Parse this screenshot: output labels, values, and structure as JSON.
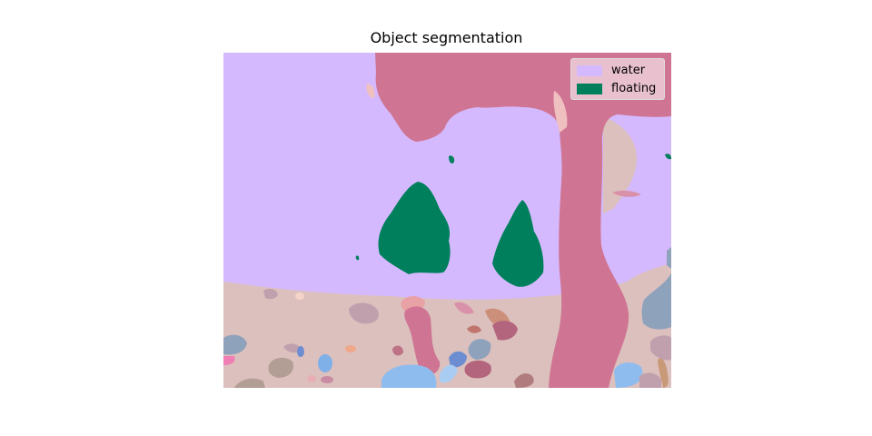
{
  "figure": {
    "title": "Object segmentation"
  },
  "legend": {
    "items": [
      {
        "label": "water",
        "color": "#d5b9ff"
      },
      {
        "label": "floating",
        "color": "#007f5c"
      }
    ]
  },
  "colors": {
    "water": "#d5b9ff",
    "floating": "#007f5c",
    "ground": "#dcc0bd",
    "pillar": "#cf7593",
    "stone_gray": "#c0a0ad",
    "stone_blue": "#8ebcee",
    "stone_slate": "#8fa2bb"
  }
}
